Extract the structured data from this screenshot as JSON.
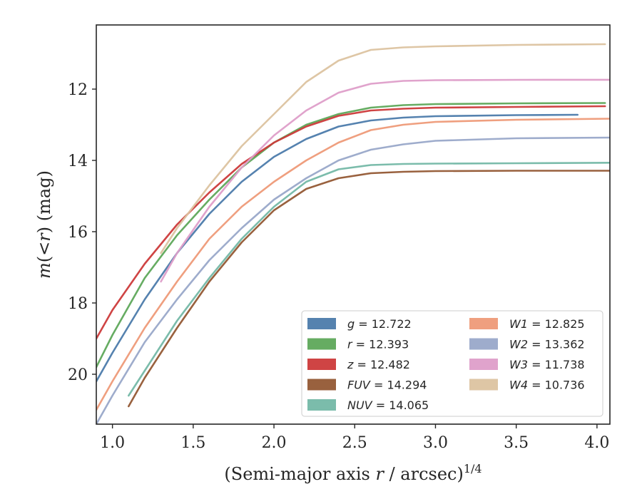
{
  "chart_data": {
    "type": "line",
    "xlabel": "(Semi-major axis r / arcsec)",
    "xlabel_parts": {
      "prefix": "(Semi-major axis ",
      "var": "r",
      "suffix": " / arcsec)",
      "sup": "1/4"
    },
    "ylabel": "m(< r) (mag)",
    "ylabel_parts": {
      "var": "m",
      "mid": "(<",
      "var2": "r",
      "end": ")",
      "unit": " (mag)"
    },
    "xlim": [
      0.9,
      4.08
    ],
    "ylim": [
      21.4,
      10.2
    ],
    "y_inverted": true,
    "x_ticks": [
      "1.0",
      "1.5",
      "2.0",
      "2.5",
      "3.0",
      "3.5",
      "4.0"
    ],
    "x_tick_values": [
      1.0,
      1.5,
      2.0,
      2.5,
      3.0,
      3.5,
      4.0
    ],
    "y_ticks": [
      "12",
      "14",
      "16",
      "18",
      "20"
    ],
    "y_tick_values": [
      12,
      14,
      16,
      18,
      20
    ],
    "grid": false,
    "legend_position": "bottom-right",
    "legend_columns": 2,
    "series": [
      {
        "name": "g",
        "value": "12.722",
        "label": "g = 12.722",
        "color": "#4c7bab",
        "x": [
          0.9,
          1.0,
          1.2,
          1.4,
          1.6,
          1.8,
          2.0,
          2.2,
          2.4,
          2.6,
          2.8,
          3.0,
          3.5,
          3.88
        ],
        "y": [
          20.2,
          19.4,
          17.9,
          16.6,
          15.5,
          14.6,
          13.9,
          13.4,
          13.05,
          12.88,
          12.8,
          12.76,
          12.73,
          12.72
        ]
      },
      {
        "name": "r",
        "value": "12.393",
        "label": "r = 12.393",
        "color": "#5ea85a",
        "x": [
          0.9,
          1.0,
          1.2,
          1.4,
          1.6,
          1.8,
          2.0,
          2.2,
          2.4,
          2.6,
          2.8,
          3.0,
          3.5,
          4.05
        ],
        "y": [
          19.8,
          18.9,
          17.3,
          16.1,
          15.1,
          14.2,
          13.5,
          13.0,
          12.7,
          12.52,
          12.45,
          12.42,
          12.4,
          12.39
        ]
      },
      {
        "name": "z",
        "value": "12.482",
        "label": "z = 12.482",
        "color": "#cc3a3a",
        "x": [
          0.9,
          1.0,
          1.2,
          1.4,
          1.6,
          1.8,
          2.0,
          2.2,
          2.4,
          2.6,
          2.8,
          3.0,
          3.5,
          4.05
        ],
        "y": [
          19.0,
          18.2,
          16.9,
          15.8,
          14.9,
          14.1,
          13.5,
          13.05,
          12.75,
          12.6,
          12.55,
          12.52,
          12.5,
          12.48
        ]
      },
      {
        "name": "FUV",
        "value": "14.294",
        "label": "FUV = 14.294",
        "color": "#935834",
        "x": [
          1.1,
          1.2,
          1.4,
          1.6,
          1.8,
          2.0,
          2.2,
          2.4,
          2.6,
          2.8,
          3.0,
          3.5,
          4.08
        ],
        "y": [
          20.9,
          20.1,
          18.7,
          17.4,
          16.3,
          15.4,
          14.8,
          14.5,
          14.36,
          14.32,
          14.3,
          14.29,
          14.29
        ]
      },
      {
        "name": "NUV",
        "value": "14.065",
        "label": "NUV = 14.065",
        "color": "#74b8a6",
        "x": [
          1.1,
          1.2,
          1.4,
          1.6,
          1.8,
          2.0,
          2.2,
          2.4,
          2.6,
          2.8,
          3.0,
          3.5,
          4.08
        ],
        "y": [
          20.6,
          19.9,
          18.5,
          17.3,
          16.2,
          15.3,
          14.6,
          14.25,
          14.13,
          14.1,
          14.09,
          14.08,
          14.065
        ]
      },
      {
        "name": "W1",
        "value": "12.825",
        "label": "W1 = 12.825",
        "color": "#ee9a78",
        "x": [
          0.9,
          1.0,
          1.2,
          1.4,
          1.6,
          1.8,
          2.0,
          2.2,
          2.4,
          2.6,
          2.8,
          3.0,
          3.5,
          4.08
        ],
        "y": [
          21.0,
          20.2,
          18.7,
          17.4,
          16.2,
          15.3,
          14.6,
          14.0,
          13.5,
          13.15,
          13.0,
          12.92,
          12.86,
          12.83
        ]
      },
      {
        "name": "W2",
        "value": "13.362",
        "label": "W2 = 13.362",
        "color": "#99a8c9",
        "x": [
          0.9,
          1.0,
          1.2,
          1.4,
          1.6,
          1.8,
          2.0,
          2.2,
          2.4,
          2.6,
          2.8,
          3.0,
          3.5,
          4.08
        ],
        "y": [
          21.4,
          20.6,
          19.1,
          17.9,
          16.8,
          15.9,
          15.1,
          14.5,
          14.0,
          13.7,
          13.55,
          13.45,
          13.38,
          13.36
        ]
      },
      {
        "name": "W3",
        "value": "11.738",
        "label": "W3 = 11.738",
        "color": "#de9ec9",
        "x": [
          1.3,
          1.4,
          1.6,
          1.8,
          2.0,
          2.2,
          2.4,
          2.6,
          2.8,
          3.0,
          3.5,
          4.08
        ],
        "y": [
          17.4,
          16.6,
          15.3,
          14.2,
          13.3,
          12.6,
          12.1,
          11.85,
          11.77,
          11.75,
          11.74,
          11.738
        ]
      },
      {
        "name": "W4",
        "value": "10.736",
        "label": "W4 = 10.736",
        "color": "#dcc3a0",
        "x": [
          1.3,
          1.4,
          1.6,
          1.8,
          2.0,
          2.2,
          2.4,
          2.6,
          2.8,
          3.0,
          3.5,
          4.05
        ],
        "y": [
          16.6,
          15.9,
          14.7,
          13.6,
          12.7,
          11.8,
          11.2,
          10.9,
          10.83,
          10.8,
          10.76,
          10.74
        ]
      }
    ]
  }
}
